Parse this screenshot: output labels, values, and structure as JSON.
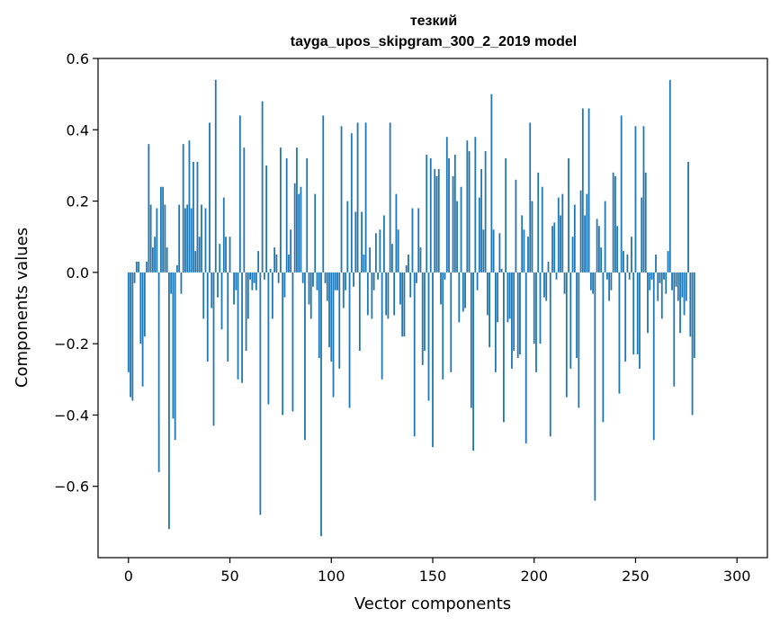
{
  "chart_data": {
    "type": "bar",
    "title": "тезкий",
    "subtitle": "tayga_upos_skipgram_300_2_2019 model",
    "xlabel": "Vector components",
    "ylabel": "Components values",
    "xlim": [
      -15,
      315
    ],
    "ylim": [
      -0.8,
      0.6
    ],
    "xticks": [
      0,
      50,
      100,
      150,
      200,
      250,
      300
    ],
    "yticks": [
      0.6,
      0.4,
      0.2,
      0.0,
      -0.2,
      -0.4,
      -0.6
    ],
    "ytick_labels": [
      "0.6",
      "0.4",
      "0.2",
      "0.0",
      "−0.2",
      "−0.4",
      "−0.6"
    ],
    "grid": false,
    "color": "#1f77b4",
    "x_start": 0,
    "values": [
      -0.28,
      -0.35,
      -0.36,
      -0.03,
      0.03,
      0.03,
      -0.2,
      -0.32,
      -0.18,
      0.03,
      0.36,
      0.19,
      0.07,
      0.1,
      0.18,
      -0.56,
      0.24,
      0.24,
      0.19,
      0.07,
      -0.72,
      -0.06,
      -0.41,
      -0.47,
      0.02,
      0.19,
      -0.06,
      0.36,
      0.18,
      0.19,
      0.37,
      0.18,
      0.31,
      0.06,
      0.31,
      0.1,
      0.19,
      -0.13,
      0.18,
      -0.25,
      0.42,
      -0.1,
      -0.43,
      0.54,
      -0.07,
      0.08,
      -0.16,
      0.21,
      0.1,
      -0.25,
      0.1,
      0.0,
      -0.09,
      -0.05,
      -0.3,
      0.44,
      -0.31,
      0.35,
      -0.22,
      -0.13,
      -0.02,
      -0.05,
      -0.03,
      -0.05,
      0.06,
      -0.68,
      0.48,
      -0.02,
      0.3,
      -0.37,
      0.01,
      -0.13,
      0.07,
      0.05,
      -0.03,
      0.35,
      -0.4,
      -0.07,
      0.32,
      0.05,
      0.12,
      -0.39,
      0.25,
      0.35,
      0.22,
      0.24,
      -0.03,
      -0.47,
      0.32,
      -0.09,
      -0.13,
      -0.04,
      0.22,
      -0.05,
      -0.24,
      -0.74,
      0.44,
      -0.03,
      -0.08,
      -0.21,
      -0.25,
      -0.35,
      -0.05,
      -0.05,
      -0.27,
      0.41,
      -0.1,
      -0.05,
      0.2,
      -0.38,
      0.39,
      -0.04,
      0.17,
      0.42,
      -0.22,
      0.17,
      0.05,
      0.42,
      -0.12,
      0.07,
      -0.13,
      -0.05,
      0.11,
      -0.02,
      0.12,
      -0.3,
      0.16,
      -0.12,
      -0.13,
      0.42,
      0.08,
      -0.12,
      0.22,
      0.12,
      -0.09,
      -0.18,
      -0.18,
      0.02,
      0.05,
      -0.07,
      0.18,
      -0.46,
      -0.03,
      0.18,
      0.07,
      -0.26,
      -0.22,
      0.33,
      -0.36,
      0.32,
      -0.49,
      0.29,
      0.27,
      0.29,
      -0.09,
      -0.3,
      -0.02,
      0.38,
      0.32,
      -0.28,
      0.27,
      0.33,
      0.2,
      -0.14,
      0.24,
      -0.11,
      -0.1,
      0.37,
      0.34,
      -0.38,
      -0.5,
      0.38,
      -0.05,
      0.21,
      0.29,
      0.12,
      0.34,
      -0.12,
      -0.21,
      0.5,
      0.12,
      -0.28,
      -0.14,
      0.11,
      0.01,
      -0.42,
      0.32,
      -0.14,
      -0.13,
      -0.27,
      -0.22,
      0.26,
      -0.24,
      -0.23,
      0.16,
      0.12,
      -0.48,
      0.1,
      0.42,
      0.2,
      -0.2,
      -0.28,
      0.28,
      -0.2,
      0.24,
      -0.07,
      -0.08,
      0.03,
      -0.46,
      0.13,
      0.14,
      -0.02,
      0.21,
      0.16,
      0.22,
      -0.06,
      -0.35,
      0.32,
      -0.27,
      0.1,
      0.19,
      -0.24,
      -0.38,
      0.23,
      0.46,
      0.16,
      0.22,
      0.46,
      -0.05,
      -0.06,
      -0.64,
      0.15,
      0.13,
      0.07,
      -0.42,
      0.2,
      -0.02,
      -0.08,
      -0.05,
      0.28,
      0.27,
      0.13,
      -0.34,
      0.44,
      0.06,
      -0.25,
      0.05,
      -0.02,
      0.1,
      -0.23,
      0.41,
      -0.23,
      -0.27,
      0.21,
      0.41,
      0.28,
      -0.17,
      -0.05,
      -0.02,
      -0.47,
      0.05,
      -0.08,
      -0.03,
      -0.13,
      -0.02,
      -0.06,
      0.06,
      0.54,
      -0.05,
      -0.32,
      -0.04,
      -0.08,
      -0.17,
      -0.07,
      -0.12,
      -0.08,
      0.31,
      -0.18,
      -0.4,
      -0.24
    ]
  }
}
